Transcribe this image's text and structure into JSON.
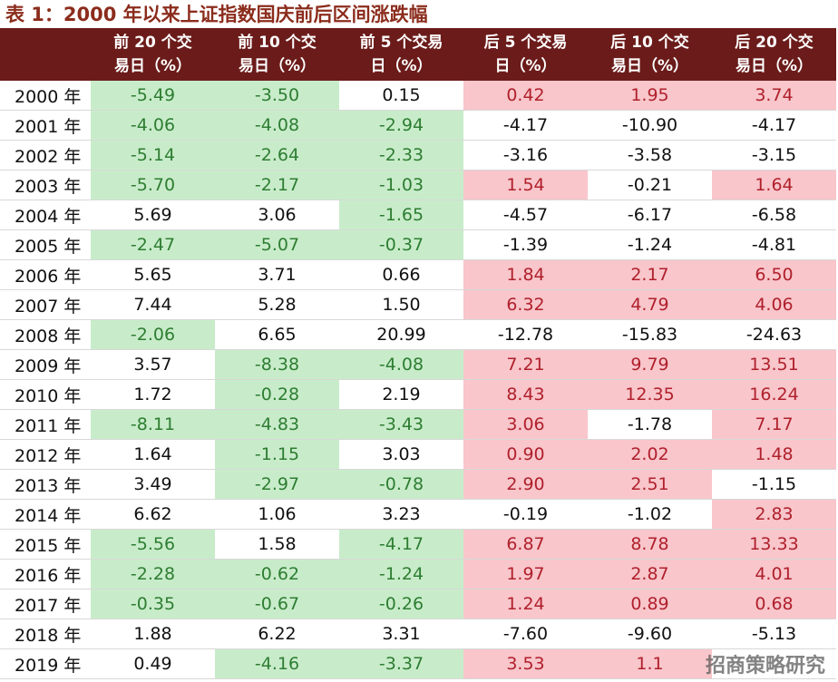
{
  "title": "表 1：2000 年以来上证指数国庆前后区间涨跌幅",
  "table": {
    "header": [
      "前 20 个交易日（%）",
      "前 10 个交易日（%）",
      "前 5 个交易日（%）",
      "后 5 个交易日（%）",
      "后 10 个交易日（%）",
      "后 20 个交易日（%）"
    ],
    "header_fill": "#6b1c1a",
    "negative_fill": "#c8ecca",
    "positive_fill": "#f8c6cb",
    "rows": [
      [
        "2000 年",
        "-5.49",
        "-3.50",
        "0.15",
        "0.42",
        "1.95",
        "3.74"
      ],
      [
        "2001 年",
        "-4.06",
        "-4.08",
        "-2.94",
        "-4.17",
        "-10.90",
        "-4.17"
      ],
      [
        "2002 年",
        "-5.14",
        "-2.64",
        "-2.33",
        "-3.16",
        "-3.58",
        "-3.15"
      ],
      [
        "2003 年",
        "-5.70",
        "-2.17",
        "-1.03",
        "1.54",
        "-0.21",
        "1.64"
      ],
      [
        "2004 年",
        "5.69",
        "3.06",
        "-1.65",
        "-4.57",
        "-6.17",
        "-6.58"
      ],
      [
        "2005 年",
        "-2.47",
        "-5.07",
        "-0.37",
        "-1.39",
        "-1.24",
        "-4.81"
      ],
      [
        "2006 年",
        "5.65",
        "3.71",
        "0.66",
        "1.84",
        "2.17",
        "6.50"
      ],
      [
        "2007 年",
        "7.44",
        "5.28",
        "1.50",
        "6.32",
        "4.79",
        "4.06"
      ],
      [
        "2008 年",
        "-2.06",
        "6.65",
        "20.99",
        "-12.78",
        "-15.83",
        "-24.63"
      ],
      [
        "2009 年",
        "3.57",
        "-8.38",
        "-4.08",
        "7.21",
        "9.79",
        "13.51"
      ],
      [
        "2010 年",
        "1.72",
        "-0.28",
        "2.19",
        "8.43",
        "12.35",
        "16.24"
      ],
      [
        "2011 年",
        "-8.11",
        "-4.83",
        "-3.43",
        "3.06",
        "-1.78",
        "7.17"
      ],
      [
        "2012 年",
        "1.64",
        "-1.15",
        "3.03",
        "0.90",
        "2.02",
        "1.48"
      ],
      [
        "2013 年",
        "3.49",
        "-2.97",
        "-0.78",
        "2.90",
        "2.51",
        "-1.15"
      ],
      [
        "2014 年",
        "6.62",
        "1.06",
        "3.23",
        "-0.19",
        "-1.02",
        "2.83"
      ],
      [
        "2015 年",
        "-5.56",
        "1.58",
        "-4.17",
        "6.87",
        "8.78",
        "13.33"
      ],
      [
        "2016 年",
        "-2.28",
        "-0.62",
        "-1.24",
        "1.97",
        "2.87",
        "4.01"
      ],
      [
        "2017 年",
        "-0.35",
        "-0.67",
        "-0.26",
        "1.24",
        "0.89",
        "0.68"
      ],
      [
        "2018 年",
        "1.88",
        "6.22",
        "3.31",
        "-7.60",
        "-9.60",
        "-5.13"
      ],
      [
        "2019 年",
        "0.49",
        "-4.16",
        "-3.37",
        "3.53",
        "1.1",
        null
      ]
    ]
  },
  "watermark": "招商策略研究"
}
